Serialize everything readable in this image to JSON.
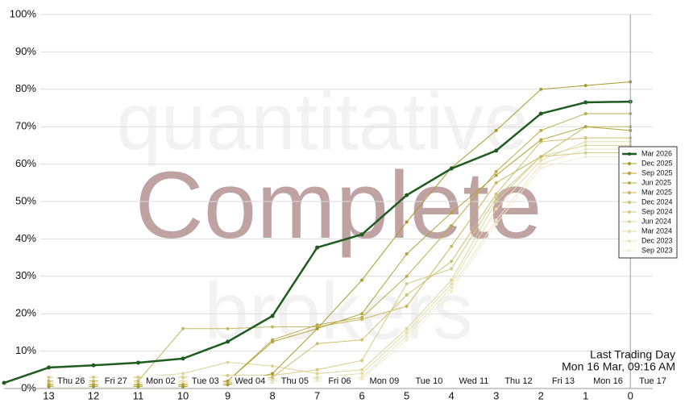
{
  "chart_data": {
    "type": "line",
    "watermark": [
      "quantitative",
      "Complete",
      "brokers"
    ],
    "x": [
      14,
      13,
      12,
      11,
      10,
      9,
      8,
      7,
      6,
      5,
      4,
      3,
      2,
      1,
      0
    ],
    "xlim": [
      14,
      -0.5
    ],
    "xticks": [
      13,
      12,
      11,
      10,
      9,
      8,
      7,
      6,
      5,
      4,
      3,
      2,
      1,
      0
    ],
    "secondary_xticks": [
      {
        "value": 12.5,
        "label": "Thu 26"
      },
      {
        "value": 11.5,
        "label": "Fri 27"
      },
      {
        "value": 10.5,
        "label": "Mon 02"
      },
      {
        "value": 9.5,
        "label": "Tue 03"
      },
      {
        "value": 8.5,
        "label": "Wed 04"
      },
      {
        "value": 7.5,
        "label": "Thu 05"
      },
      {
        "value": 6.5,
        "label": "Fri 06"
      },
      {
        "value": 5.5,
        "label": "Mon 09"
      },
      {
        "value": 4.5,
        "label": "Tue 10"
      },
      {
        "value": 3.5,
        "label": "Wed 11"
      },
      {
        "value": 2.5,
        "label": "Thu 12"
      },
      {
        "value": 1.5,
        "label": "Fri 13"
      },
      {
        "value": 0.5,
        "label": "Mon 16"
      },
      {
        "value": -0.5,
        "label": "Tue 17"
      }
    ],
    "ylim": [
      0,
      100
    ],
    "yticks": [
      {
        "value": 0,
        "label": "0%"
      },
      {
        "value": 10,
        "label": "10%"
      },
      {
        "value": 20,
        "label": "20%"
      },
      {
        "value": 30,
        "label": "30%"
      },
      {
        "value": 40,
        "label": "40%"
      },
      {
        "value": 50,
        "label": "50%"
      },
      {
        "value": 60,
        "label": "60%"
      },
      {
        "value": 70,
        "label": "70%"
      },
      {
        "value": 80,
        "label": "80%"
      },
      {
        "value": 90,
        "label": "90%"
      },
      {
        "value": 100,
        "label": "100%"
      }
    ],
    "grid": true,
    "legend": "right",
    "annotation": {
      "x": 0,
      "lines": [
        "Last Trading Day",
        "Mon 16 Mar, 09:16 AM"
      ]
    },
    "series": [
      {
        "name": "Mar 2026",
        "color": "#1f5c1f",
        "values": [
          1.5,
          5.6,
          6.2,
          6.9,
          8,
          12.5,
          19.4,
          37.7,
          41.2,
          51.7,
          58.8,
          63.6,
          73.5,
          76.5,
          76.7
        ]
      },
      {
        "name": "Dec 2025",
        "color": "#a89a28",
        "values": [
          null,
          0.5,
          0.5,
          0.5,
          0.5,
          1,
          4,
          16,
          29,
          44.5,
          59,
          69,
          80,
          81,
          82
        ]
      },
      {
        "name": "Sep 2025",
        "color": "#b3a238",
        "values": [
          null,
          1,
          1,
          1,
          1,
          2,
          12.5,
          16,
          20,
          36,
          47,
          57,
          66.5,
          70,
          69
        ]
      },
      {
        "name": "Jun 2025",
        "color": "#bdac4a",
        "values": [
          null,
          1,
          1,
          1,
          1,
          2,
          13,
          17,
          19,
          30,
          43.5,
          58,
          69,
          73.5,
          73.5
        ]
      },
      {
        "name": "Mar 2025",
        "color": "#c7b75e",
        "values": [
          null,
          2,
          2,
          2,
          16,
          16,
          16.5,
          16.5,
          18.5,
          22,
          38,
          55,
          62,
          70,
          70
        ]
      },
      {
        "name": "Dec 2024",
        "color": "#d0c072",
        "values": [
          null,
          1,
          1,
          1,
          1,
          1.5,
          3,
          12,
          13,
          25,
          34,
          52,
          66,
          67,
          67
        ]
      },
      {
        "name": "Sep 2024",
        "color": "#d8ca86",
        "values": [
          null,
          3,
          3,
          3,
          3,
          3.5,
          3.5,
          5,
          7.5,
          28,
          32,
          51,
          62,
          63,
          63
        ]
      },
      {
        "name": "Jun 2024",
        "color": "#dfd39a",
        "values": [
          null,
          2,
          2,
          3,
          4,
          7,
          6,
          4,
          5,
          16,
          29,
          50,
          62,
          65,
          65
        ]
      },
      {
        "name": "Mar 2024",
        "color": "#e6dcae",
        "values": [
          null,
          1.5,
          1.5,
          1.5,
          2,
          2,
          2.5,
          3,
          4,
          15,
          28,
          48,
          61,
          66,
          66
        ]
      },
      {
        "name": "Dec 2023",
        "color": "#ece5c2",
        "values": [
          null,
          1.5,
          1.5,
          1.5,
          1.5,
          2,
          2,
          2.5,
          3,
          14,
          27,
          45,
          60,
          64,
          64
        ]
      },
      {
        "name": "Sep 2023",
        "color": "#f1ecd3",
        "values": [
          null,
          0.5,
          0.5,
          0.5,
          1,
          1,
          1.5,
          2,
          2.5,
          13,
          26,
          44,
          59,
          62,
          62
        ]
      }
    ]
  }
}
